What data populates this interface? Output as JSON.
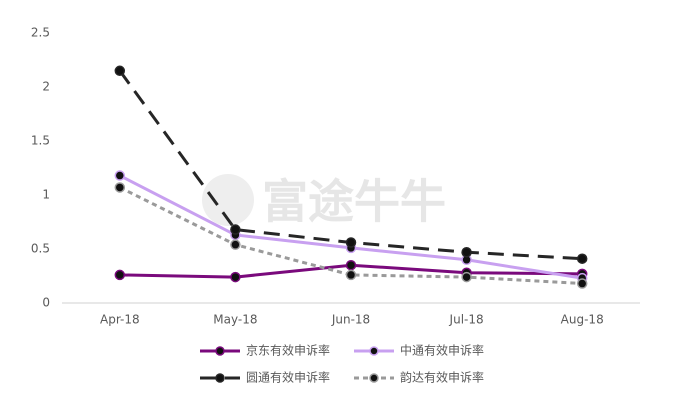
{
  "chart_data": {
    "type": "line",
    "watermark": "富途牛牛",
    "categories": [
      "Apr-18",
      "May-18",
      "Jun-18",
      "Jul-18",
      "Aug-18"
    ],
    "series": [
      {
        "name": "京东有效申诉率",
        "color": "#7a0a7c",
        "dash": "solid",
        "values": [
          0.26,
          0.24,
          0.35,
          0.28,
          0.27
        ]
      },
      {
        "name": "中通有效申诉率",
        "color": "#c8a0f0",
        "dash": "solid",
        "values": [
          1.18,
          0.63,
          0.51,
          0.4,
          0.23
        ]
      },
      {
        "name": "圆通有效申诉率",
        "color": "#262626",
        "dash": "long",
        "values": [
          2.15,
          0.68,
          0.56,
          0.47,
          0.41
        ]
      },
      {
        "name": "韵达有效申诉率",
        "color": "#9a9a9a",
        "dash": "short",
        "values": [
          1.07,
          0.54,
          0.26,
          0.24,
          0.18
        ]
      }
    ],
    "ylim": [
      0,
      2.5
    ],
    "yticks": [
      0,
      0.5,
      1,
      1.5,
      2,
      2.5
    ],
    "grid": false,
    "legend": "bottom"
  }
}
